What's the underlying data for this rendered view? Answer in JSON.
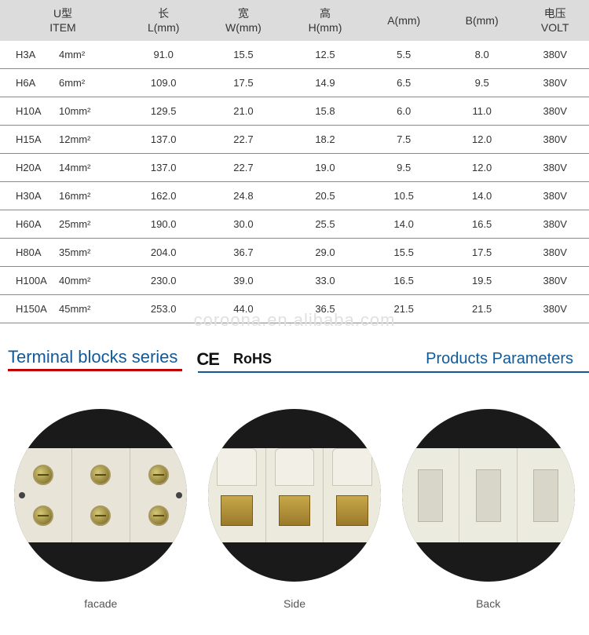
{
  "table": {
    "headers": [
      {
        "cn": "U型",
        "en": "ITEM"
      },
      {
        "cn": "长",
        "en": "L(mm)"
      },
      {
        "cn": "宽",
        "en": "W(mm)"
      },
      {
        "cn": "高",
        "en": "H(mm)"
      },
      {
        "cn": "",
        "en": "A(mm)"
      },
      {
        "cn": "",
        "en": "B(mm)"
      },
      {
        "cn": "电压",
        "en": "VOLT"
      }
    ],
    "rows": [
      {
        "code": "H3A",
        "spec": "4mm²",
        "L": "91.0",
        "W": "15.5",
        "H": "12.5",
        "A": "5.5",
        "B": "8.0",
        "V": "380V"
      },
      {
        "code": "H6A",
        "spec": "6mm²",
        "L": "109.0",
        "W": "17.5",
        "H": "14.9",
        "A": "6.5",
        "B": "9.5",
        "V": "380V"
      },
      {
        "code": "H10A",
        "spec": "10mm²",
        "L": "129.5",
        "W": "21.0",
        "H": "15.8",
        "A": "6.0",
        "B": "11.0",
        "V": "380V"
      },
      {
        "code": "H15A",
        "spec": "12mm²",
        "L": "137.0",
        "W": "22.7",
        "H": "18.2",
        "A": "7.5",
        "B": "12.0",
        "V": "380V"
      },
      {
        "code": "H20A",
        "spec": "14mm²",
        "L": "137.0",
        "W": "22.7",
        "H": "19.0",
        "A": "9.5",
        "B": "12.0",
        "V": "380V"
      },
      {
        "code": "H30A",
        "spec": "16mm²",
        "L": "162.0",
        "W": "24.8",
        "H": "20.5",
        "A": "10.5",
        "B": "14.0",
        "V": "380V"
      },
      {
        "code": "H60A",
        "spec": "25mm²",
        "L": "190.0",
        "W": "30.0",
        "H": "25.5",
        "A": "14.0",
        "B": "16.5",
        "V": "380V"
      },
      {
        "code": "H80A",
        "spec": "35mm²",
        "L": "204.0",
        "W": "36.7",
        "H": "29.0",
        "A": "15.5",
        "B": "17.5",
        "V": "380V"
      },
      {
        "code": "H100A",
        "spec": "40mm²",
        "L": "230.0",
        "W": "39.0",
        "H": "33.0",
        "A": "16.5",
        "B": "19.5",
        "V": "380V"
      },
      {
        "code": "H150A",
        "spec": "45mm²",
        "L": "253.0",
        "W": "44.0",
        "H": "36.5",
        "A": "21.5",
        "B": "21.5",
        "V": "380V"
      }
    ],
    "header_bg": "#dcdcdc",
    "row_border": "#888888",
    "text_color": "#333333",
    "header_fontsize": 14,
    "cell_fontsize": 13
  },
  "watermark": "coroona.en.alibaba.com",
  "section": {
    "title": "Terminal blocks series",
    "ce": "CE",
    "rohs": "RoHS",
    "right": "Products Parameters",
    "title_color": "#105a9c",
    "underline_color": "#c00000"
  },
  "photos": {
    "bg": "#1a1a1a",
    "block_bg": "#e8e4d8",
    "brass_color": "#c8a84a",
    "items": [
      {
        "caption": "facade"
      },
      {
        "caption": "Side"
      },
      {
        "caption": "Back"
      }
    ]
  }
}
